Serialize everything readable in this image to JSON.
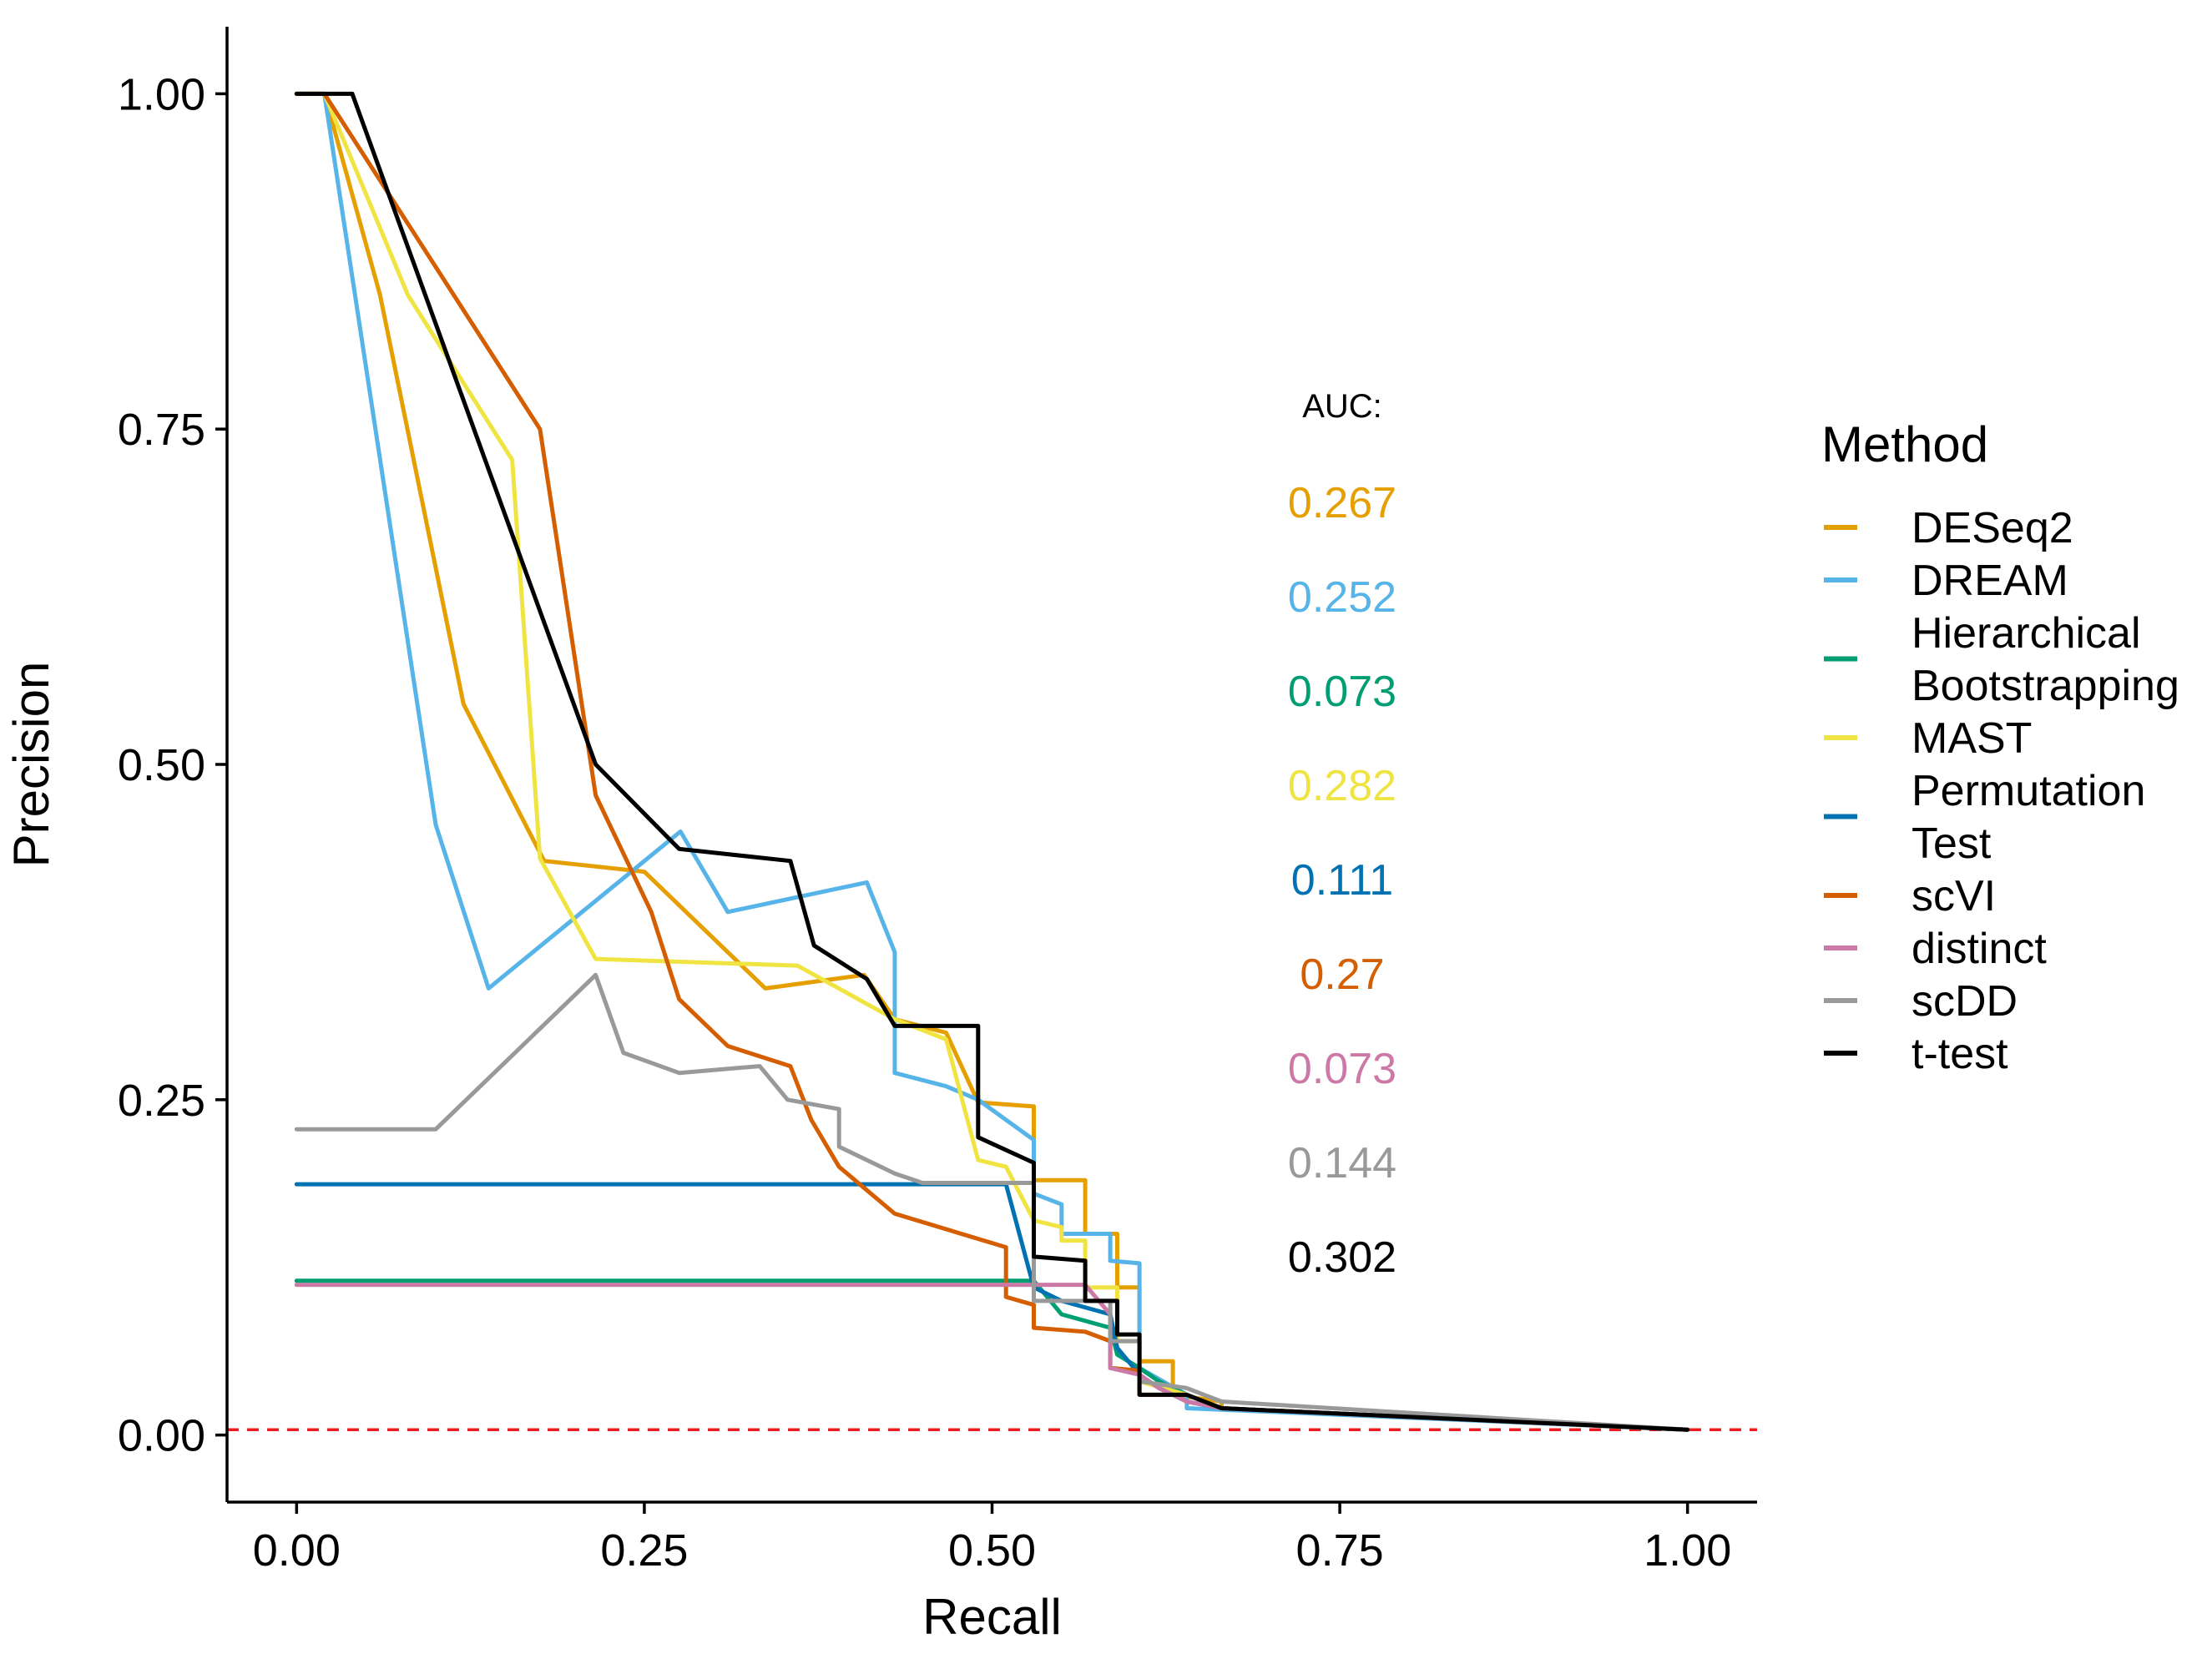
{
  "chart_data": {
    "type": "line",
    "title": "",
    "xlabel": "Recall",
    "ylabel": "Precision",
    "xlim": [
      -0.05,
      1.05
    ],
    "ylim": [
      -0.05,
      1.05
    ],
    "x_ticks": [
      0,
      0.25,
      0.5,
      0.75,
      1
    ],
    "x_tick_labels": [
      "0.00",
      "0.25",
      "0.50",
      "0.75",
      "1.00"
    ],
    "y_ticks": [
      0,
      0.25,
      0.5,
      0.75,
      1
    ],
    "y_tick_labels": [
      "0.00",
      "0.25",
      "0.50",
      "0.75",
      "1.00"
    ],
    "grid": false,
    "legend_title": "Method",
    "legend_position": "right",
    "auc_title": "AUC:",
    "baseline": {
      "y": 0.004,
      "color": "#EE1C1C",
      "style": "dashed"
    },
    "series": [
      {
        "name": "DESeq2",
        "legend_label": [
          "DESeq2"
        ],
        "color": "#E69F00",
        "auc": "0.267",
        "points": [
          [
            0.0,
            1.0
          ],
          [
            0.02,
            1.0
          ],
          [
            0.06,
            0.85
          ],
          [
            0.12,
            0.545
          ],
          [
            0.178,
            0.428
          ],
          [
            0.25,
            0.42
          ],
          [
            0.337,
            0.333
          ],
          [
            0.408,
            0.343
          ],
          [
            0.43,
            0.31
          ],
          [
            0.467,
            0.3
          ],
          [
            0.49,
            0.248
          ],
          [
            0.53,
            0.245
          ],
          [
            0.53,
            0.19
          ],
          [
            0.567,
            0.19
          ],
          [
            0.567,
            0.15
          ],
          [
            0.59,
            0.15
          ],
          [
            0.59,
            0.11
          ],
          [
            0.606,
            0.11
          ],
          [
            0.606,
            0.055
          ],
          [
            0.63,
            0.055
          ],
          [
            0.63,
            0.03
          ],
          [
            0.665,
            0.025
          ],
          [
            0.665,
            0.02
          ],
          [
            1.0,
            0.004
          ]
        ]
      },
      {
        "name": "DREAM",
        "legend_label": [
          "DREAM"
        ],
        "color": "#56B4E9",
        "auc": "0.252",
        "points": [
          [
            0.0,
            1.0
          ],
          [
            0.02,
            1.0
          ],
          [
            0.1,
            0.455
          ],
          [
            0.138,
            0.333
          ],
          [
            0.276,
            0.45
          ],
          [
            0.31,
            0.39
          ],
          [
            0.41,
            0.412
          ],
          [
            0.43,
            0.36
          ],
          [
            0.43,
            0.27
          ],
          [
            0.467,
            0.26
          ],
          [
            0.49,
            0.25
          ],
          [
            0.53,
            0.22
          ],
          [
            0.53,
            0.18
          ],
          [
            0.55,
            0.172
          ],
          [
            0.55,
            0.15
          ],
          [
            0.585,
            0.15
          ],
          [
            0.585,
            0.13
          ],
          [
            0.606,
            0.128
          ],
          [
            0.606,
            0.05
          ],
          [
            0.64,
            0.03
          ],
          [
            0.64,
            0.02
          ],
          [
            1.0,
            0.004
          ]
        ]
      },
      {
        "name": "Hierarchical Bootstrapping",
        "legend_label": [
          "Hierarchical",
          "Bootstrapping"
        ],
        "color": "#009E73",
        "auc": "0.073",
        "points": [
          [
            0.0,
            0.115
          ],
          [
            0.53,
            0.115
          ],
          [
            0.55,
            0.09
          ],
          [
            0.585,
            0.08
          ],
          [
            0.59,
            0.06
          ],
          [
            0.606,
            0.05
          ],
          [
            0.62,
            0.04
          ],
          [
            0.64,
            0.03
          ],
          [
            0.665,
            0.02
          ],
          [
            1.0,
            0.004
          ]
        ]
      },
      {
        "name": "MAST",
        "legend_label": [
          "MAST"
        ],
        "color": "#F0E442",
        "auc": "0.282",
        "points": [
          [
            0.0,
            1.0
          ],
          [
            0.02,
            1.0
          ],
          [
            0.08,
            0.85
          ],
          [
            0.155,
            0.727
          ],
          [
            0.175,
            0.43
          ],
          [
            0.215,
            0.355
          ],
          [
            0.36,
            0.35
          ],
          [
            0.43,
            0.31
          ],
          [
            0.467,
            0.295
          ],
          [
            0.49,
            0.205
          ],
          [
            0.51,
            0.2
          ],
          [
            0.53,
            0.16
          ],
          [
            0.55,
            0.155
          ],
          [
            0.55,
            0.145
          ],
          [
            0.567,
            0.145
          ],
          [
            0.567,
            0.11
          ],
          [
            0.59,
            0.11
          ],
          [
            0.59,
            0.07
          ],
          [
            0.606,
            0.07
          ],
          [
            0.606,
            0.04
          ],
          [
            0.64,
            0.03
          ],
          [
            0.665,
            0.02
          ],
          [
            1.0,
            0.004
          ]
        ]
      },
      {
        "name": "Permutation Test",
        "legend_label": [
          "Permutation",
          "Test"
        ],
        "color": "#0072B2",
        "auc": "0.111",
        "points": [
          [
            0.0,
            0.187
          ],
          [
            0.51,
            0.187
          ],
          [
            0.53,
            0.11
          ],
          [
            0.55,
            0.1
          ],
          [
            0.585,
            0.09
          ],
          [
            0.59,
            0.065
          ],
          [
            0.606,
            0.045
          ],
          [
            0.62,
            0.035
          ],
          [
            0.64,
            0.025
          ],
          [
            0.665,
            0.02
          ],
          [
            1.0,
            0.004
          ]
        ]
      },
      {
        "name": "scVI",
        "legend_label": [
          "scVI"
        ],
        "color": "#D55E00",
        "auc": "0.27",
        "points": [
          [
            0.0,
            1.0
          ],
          [
            0.02,
            1.0
          ],
          [
            0.175,
            0.75
          ],
          [
            0.215,
            0.477
          ],
          [
            0.255,
            0.39
          ],
          [
            0.275,
            0.325
          ],
          [
            0.31,
            0.29
          ],
          [
            0.355,
            0.275
          ],
          [
            0.37,
            0.235
          ],
          [
            0.39,
            0.2
          ],
          [
            0.43,
            0.165
          ],
          [
            0.51,
            0.14
          ],
          [
            0.51,
            0.103
          ],
          [
            0.53,
            0.097
          ],
          [
            0.53,
            0.08
          ],
          [
            0.567,
            0.077
          ],
          [
            0.585,
            0.07
          ],
          [
            0.585,
            0.05
          ],
          [
            0.606,
            0.048
          ],
          [
            0.606,
            0.03
          ],
          [
            0.64,
            0.03
          ],
          [
            0.665,
            0.02
          ],
          [
            1.0,
            0.004
          ]
        ]
      },
      {
        "name": "distinct",
        "legend_label": [
          "distinct"
        ],
        "color": "#CC79A7",
        "auc": "0.073",
        "points": [
          [
            0.0,
            0.112
          ],
          [
            0.567,
            0.112
          ],
          [
            0.585,
            0.09
          ],
          [
            0.585,
            0.05
          ],
          [
            0.606,
            0.045
          ],
          [
            0.62,
            0.035
          ],
          [
            0.64,
            0.025
          ],
          [
            0.665,
            0.02
          ],
          [
            1.0,
            0.004
          ]
        ]
      },
      {
        "name": "scDD",
        "legend_label": [
          "scDD"
        ],
        "color": "#999999",
        "auc": "0.144",
        "points": [
          [
            0.0,
            0.228
          ],
          [
            0.1,
            0.228
          ],
          [
            0.215,
            0.343
          ],
          [
            0.235,
            0.285
          ],
          [
            0.275,
            0.27
          ],
          [
            0.333,
            0.275
          ],
          [
            0.353,
            0.25
          ],
          [
            0.39,
            0.243
          ],
          [
            0.39,
            0.215
          ],
          [
            0.43,
            0.195
          ],
          [
            0.45,
            0.188
          ],
          [
            0.53,
            0.188
          ],
          [
            0.53,
            0.1
          ],
          [
            0.585,
            0.1
          ],
          [
            0.585,
            0.07
          ],
          [
            0.606,
            0.07
          ],
          [
            0.606,
            0.04
          ],
          [
            0.64,
            0.035
          ],
          [
            0.665,
            0.025
          ],
          [
            1.0,
            0.004
          ]
        ]
      },
      {
        "name": "t-test",
        "legend_label": [
          "t-test"
        ],
        "color": "#000000",
        "auc": "0.302",
        "points": [
          [
            0.0,
            1.0
          ],
          [
            0.04,
            1.0
          ],
          [
            0.215,
            0.5
          ],
          [
            0.275,
            0.437
          ],
          [
            0.355,
            0.428
          ],
          [
            0.372,
            0.365
          ],
          [
            0.41,
            0.34
          ],
          [
            0.43,
            0.305
          ],
          [
            0.49,
            0.305
          ],
          [
            0.49,
            0.222
          ],
          [
            0.53,
            0.203
          ],
          [
            0.53,
            0.133
          ],
          [
            0.567,
            0.13
          ],
          [
            0.567,
            0.1
          ],
          [
            0.59,
            0.1
          ],
          [
            0.59,
            0.075
          ],
          [
            0.606,
            0.075
          ],
          [
            0.606,
            0.03
          ],
          [
            0.64,
            0.03
          ],
          [
            0.665,
            0.02
          ],
          [
            1.0,
            0.004
          ]
        ]
      }
    ]
  }
}
